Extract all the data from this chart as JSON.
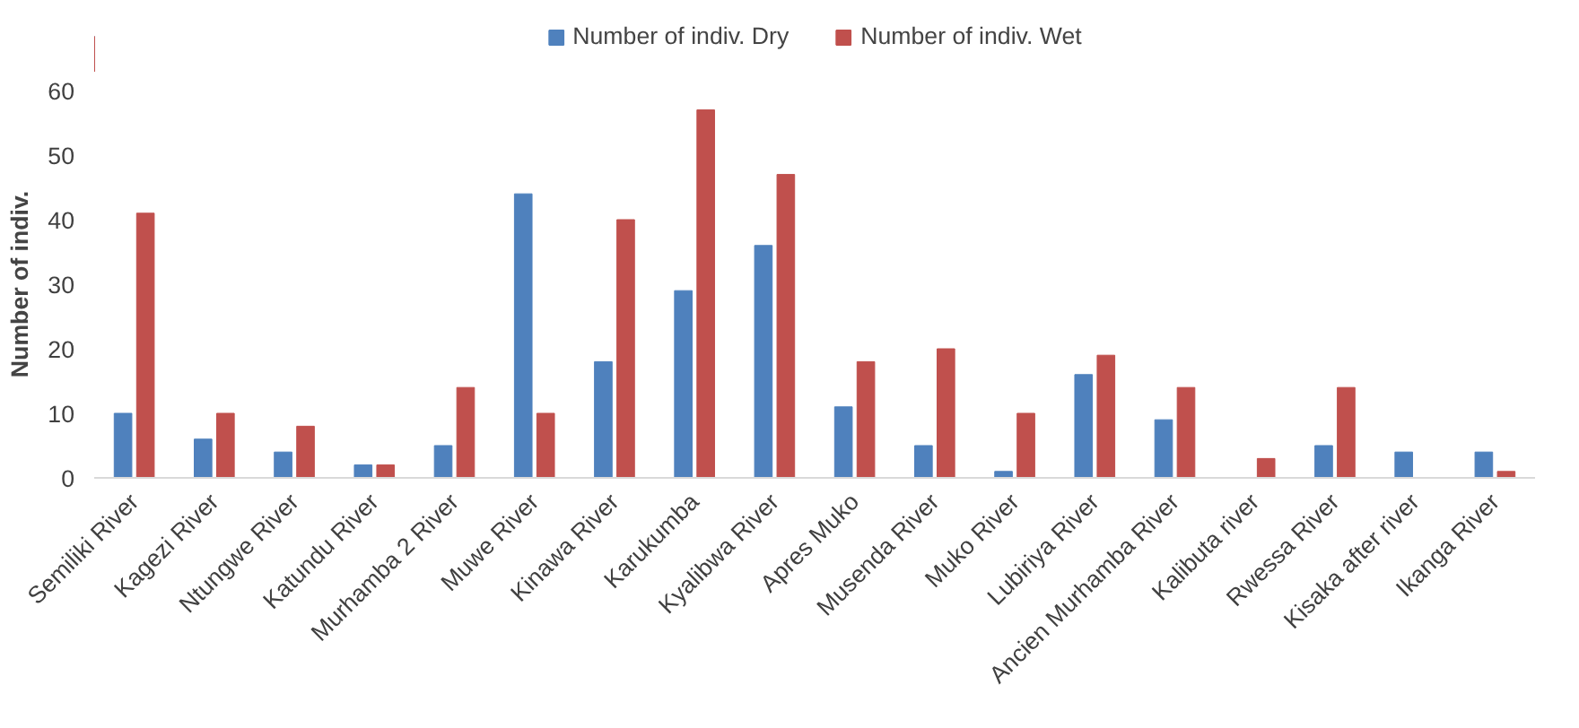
{
  "chart_data": {
    "type": "bar",
    "ylabel": "Number of indiv.",
    "categories": [
      "Semiliki River",
      "Kagezi River",
      "Ntungwe River",
      "Katundu River",
      "Murhamba 2 River",
      "Muwe River",
      "Kinawa River",
      "Karukumba",
      "Kyalibwa River",
      "Apres Muko",
      "Musenda River",
      "Muko River",
      "Lubiriya River",
      "Ancien Murhamba River",
      "Kalibuta river",
      "Rwessa River",
      "Kisaka after river",
      "Ikanga River"
    ],
    "series": [
      {
        "name": "Number of indiv. Dry",
        "color": "#4f81bd",
        "values": [
          10,
          6,
          4,
          2,
          5,
          44,
          18,
          29,
          36,
          11,
          5,
          1,
          16,
          9,
          0,
          5,
          4,
          4
        ]
      },
      {
        "name": "Number of indiv. Wet",
        "color": "#c0504d",
        "values": [
          41,
          10,
          8,
          2,
          14,
          10,
          40,
          57,
          47,
          18,
          20,
          10,
          19,
          14,
          3,
          14,
          0,
          1
        ]
      }
    ],
    "ylim": [
      0,
      60
    ],
    "yticks": [
      0,
      10,
      20,
      30,
      40,
      50,
      60
    ],
    "grid": false,
    "legend": "top"
  }
}
